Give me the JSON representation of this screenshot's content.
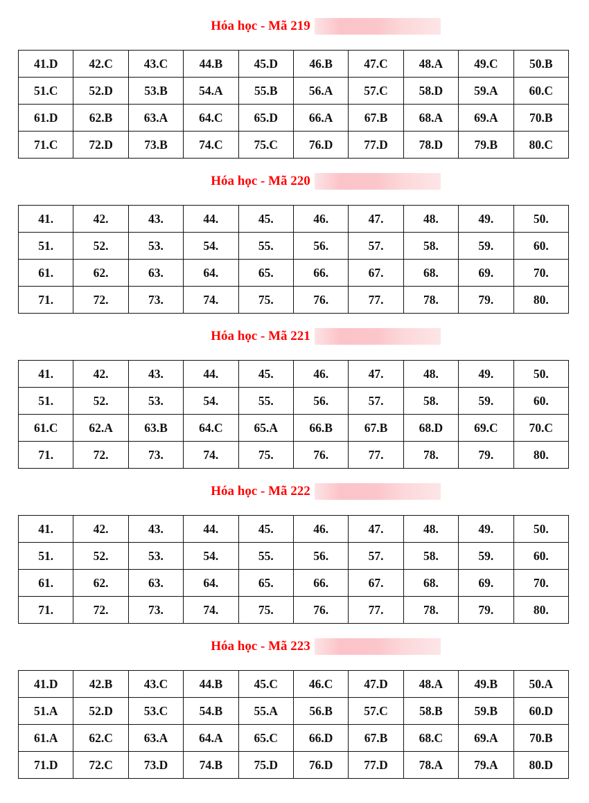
{
  "sections": [
    {
      "title": "Hóa học - Mã 219",
      "rows": [
        [
          "41.D",
          "42.C",
          "43.C",
          "44.B",
          "45.D",
          "46.B",
          "47.C",
          "48.A",
          "49.C",
          "50.B"
        ],
        [
          "51.C",
          "52.D",
          "53.B",
          "54.A",
          "55.B",
          "56.A",
          "57.C",
          "58.D",
          "59.A",
          "60.C"
        ],
        [
          "61.D",
          "62.B",
          "63.A",
          "64.C",
          "65.D",
          "66.A",
          "67.B",
          "68.A",
          "69.A",
          "70.B"
        ],
        [
          "71.C",
          "72.D",
          "73.B",
          "74.C",
          "75.C",
          "76.D",
          "77.D",
          "78.D",
          "79.B",
          "80.C"
        ]
      ]
    },
    {
      "title": "Hóa học - Mã 220",
      "rows": [
        [
          "41.",
          "42.",
          "43.",
          "44.",
          "45.",
          "46.",
          "47.",
          "48.",
          "49.",
          "50."
        ],
        [
          "51.",
          "52.",
          "53.",
          "54.",
          "55.",
          "56.",
          "57.",
          "58.",
          "59.",
          "60."
        ],
        [
          "61.",
          "62.",
          "63.",
          "64.",
          "65.",
          "66.",
          "67.",
          "68.",
          "69.",
          "70."
        ],
        [
          "71.",
          "72.",
          "73.",
          "74.",
          "75.",
          "76.",
          "77.",
          "78.",
          "79.",
          "80."
        ]
      ]
    },
    {
      "title": "Hóa học - Mã 221",
      "rows": [
        [
          "41.",
          "42.",
          "43.",
          "44.",
          "45.",
          "46.",
          "47.",
          "48.",
          "49.",
          "50."
        ],
        [
          "51.",
          "52.",
          "53.",
          "54.",
          "55.",
          "56.",
          "57.",
          "58.",
          "59.",
          "60."
        ],
        [
          "61.C",
          "62.A",
          "63.B",
          "64.C",
          "65.A",
          "66.B",
          "67.B",
          "68.D",
          "69.C",
          "70.C"
        ],
        [
          "71.",
          "72.",
          "73.",
          "74.",
          "75.",
          "76.",
          "77.",
          "78.",
          "79.",
          "80."
        ]
      ]
    },
    {
      "title": "Hóa học - Mã 222",
      "rows": [
        [
          "41.",
          "42.",
          "43.",
          "44.",
          "45.",
          "46.",
          "47.",
          "48.",
          "49.",
          "50."
        ],
        [
          "51.",
          "52.",
          "53.",
          "54.",
          "55.",
          "56.",
          "57.",
          "58.",
          "59.",
          "60."
        ],
        [
          "61.",
          "62.",
          "63.",
          "64.",
          "65.",
          "66.",
          "67.",
          "68.",
          "69.",
          "70."
        ],
        [
          "71.",
          "72.",
          "73.",
          "74.",
          "75.",
          "76.",
          "77.",
          "78.",
          "79.",
          "80."
        ]
      ]
    },
    {
      "title": "Hóa học - Mã 223",
      "rows": [
        [
          "41.D",
          "42.B",
          "43.C",
          "44.B",
          "45.C",
          "46.C",
          "47.D",
          "48.A",
          "49.B",
          "50.A"
        ],
        [
          "51.A",
          "52.D",
          "53.C",
          "54.B",
          "55.A",
          "56.B",
          "57.C",
          "58.B",
          "59.B",
          "60.D"
        ],
        [
          "61.A",
          "62.C",
          "63.A",
          "64.A",
          "65.C",
          "66.D",
          "67.B",
          "68.C",
          "69.A",
          "70.B"
        ],
        [
          "71.D",
          "72.C",
          "73.D",
          "74.B",
          "75.D",
          "76.D",
          "77.D",
          "78.A",
          "79.A",
          "80.D"
        ]
      ]
    }
  ],
  "colors": {
    "title": "#ff0000",
    "redaction": "#fbc4c8"
  }
}
